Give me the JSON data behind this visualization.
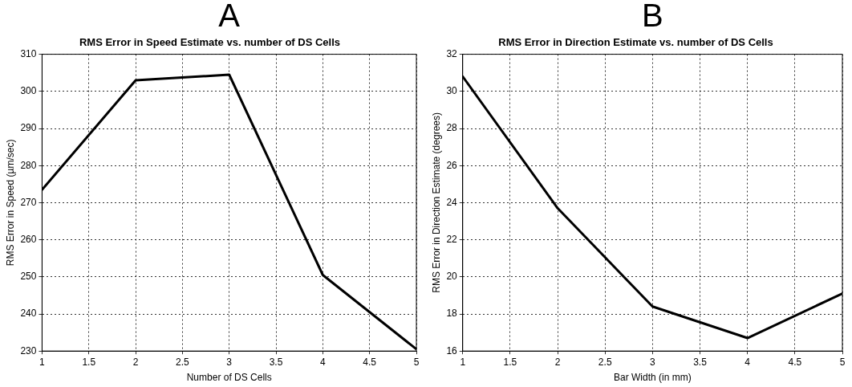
{
  "chart_data": [
    {
      "type": "line",
      "title": "RMS Error in Speed Estimate vs. number of DS Cells",
      "xlabel": "Number of DS Cells",
      "ylabel": "RMS Error in Speed (µm/sec)",
      "annotations": [
        "A"
      ],
      "x": [
        1,
        2,
        3,
        4,
        5
      ],
      "series": [
        {
          "color": "#000000",
          "values": [
            273.5,
            303,
            304.5,
            250.5,
            230.5
          ]
        }
      ],
      "xlim": [
        1,
        5
      ],
      "xticks": [
        1,
        1.5,
        2,
        2.5,
        3,
        3.5,
        4,
        4.5,
        5
      ],
      "ylim": [
        230,
        310
      ],
      "yticks": [
        230,
        240,
        250,
        260,
        270,
        280,
        290,
        300,
        310
      ],
      "grid": true,
      "legend": false,
      "marker": "none",
      "line_style": "solid"
    },
    {
      "type": "line",
      "title": "RMS Error in Direction Estimate vs. number of DS Cells",
      "xlabel": "Bar Width (in mm)",
      "ylabel": "RMS Error in Direction Estimate (degrees)",
      "annotations": [
        "B"
      ],
      "x": [
        1,
        2,
        3,
        4,
        5
      ],
      "series": [
        {
          "color": "#000000",
          "values": [
            30.8,
            23.7,
            18.4,
            16.7,
            19.1
          ]
        }
      ],
      "xlim": [
        1,
        5
      ],
      "xticks": [
        1,
        1.5,
        2,
        2.5,
        3,
        3.5,
        4,
        4.5,
        5
      ],
      "ylim": [
        16,
        32
      ],
      "yticks": [
        16,
        18,
        20,
        22,
        24,
        26,
        28,
        30,
        32
      ],
      "grid": true,
      "legend": false,
      "marker": "none",
      "line_style": "solid"
    }
  ]
}
